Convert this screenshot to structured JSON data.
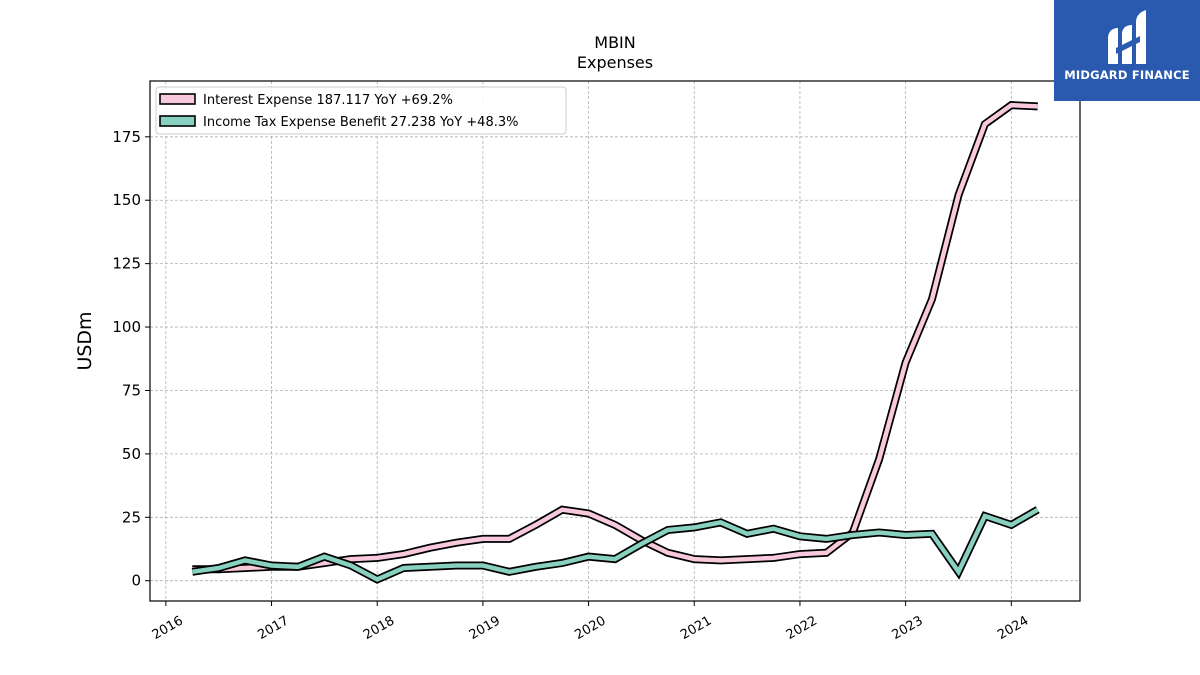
{
  "chart_data": {
    "type": "line",
    "title": "MBIN",
    "subtitle": "Expenses",
    "ylabel": "USDm",
    "xlabel": "",
    "ylim": [
      -8,
      197
    ],
    "xlim": [
      2015.85,
      2024.65
    ],
    "yticks": [
      0,
      25,
      50,
      75,
      100,
      125,
      150,
      175
    ],
    "xticks": [
      2016,
      2017,
      2018,
      2019,
      2020,
      2021,
      2022,
      2023,
      2024
    ],
    "grid": true,
    "legend_position": "top-left",
    "series": [
      {
        "name": "Interest Expense",
        "legend_label": "Interest Expense  187.117 YoY +69.2%",
        "color": "#f8c8dc",
        "x": [
          2016.25,
          2016.5,
          2016.75,
          2017.0,
          2017.25,
          2017.5,
          2017.75,
          2018.0,
          2018.25,
          2018.5,
          2018.75,
          2019.0,
          2019.25,
          2019.5,
          2019.75,
          2020.0,
          2020.25,
          2020.5,
          2020.75,
          2021.0,
          2021.25,
          2021.5,
          2021.75,
          2022.0,
          2022.25,
          2022.5,
          2022.75,
          2023.0,
          2023.25,
          2023.5,
          2023.75,
          2024.0,
          2024.25
        ],
        "values": [
          4.5,
          4.5,
          5,
          5.5,
          5.5,
          7,
          8.5,
          9,
          10.5,
          13,
          15,
          16.5,
          16.5,
          22,
          28,
          26.5,
          22,
          16,
          11,
          8.5,
          8,
          8.5,
          9,
          10.5,
          11,
          19,
          48,
          86,
          111,
          152,
          180,
          187.5,
          187
        ]
      },
      {
        "name": "Income Tax Expense Benefit",
        "legend_label": "Income Tax Expense Benefit  27.238 YoY +48.3%",
        "color": "#88d0c0",
        "x": [
          2016.25,
          2016.5,
          2016.75,
          2017.0,
          2017.25,
          2017.5,
          2017.75,
          2018.0,
          2018.25,
          2018.5,
          2018.75,
          2019.0,
          2019.25,
          2019.5,
          2019.75,
          2020.0,
          2020.25,
          2020.5,
          2020.75,
          2021.0,
          2021.25,
          2021.5,
          2021.75,
          2022.0,
          2022.25,
          2022.5,
          2022.75,
          2023.0,
          2023.25,
          2023.5,
          2023.75,
          2024.0,
          2024.25
        ],
        "values": [
          3.5,
          5,
          8,
          6,
          5.5,
          9.5,
          6,
          0.5,
          5,
          5.5,
          6,
          6,
          3.5,
          5.5,
          7,
          9.5,
          8.5,
          14.5,
          20,
          21,
          23,
          18.5,
          20.5,
          17.5,
          16.5,
          18,
          19,
          18,
          18.5,
          3.5,
          25.5,
          22,
          28
        ]
      }
    ]
  },
  "logo": {
    "text": "MIDGARD FINANCE",
    "background": "#2a5ab0"
  }
}
